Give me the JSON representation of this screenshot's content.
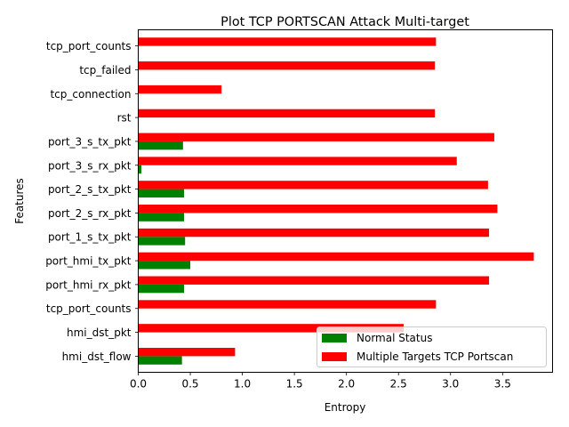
{
  "chart_data": {
    "type": "bar",
    "orientation": "horizontal",
    "title": "Plot TCP PORTSCAN Attack Multi-target",
    "xlabel": "Entropy",
    "ylabel": "Features",
    "xlim": [
      0,
      3.98
    ],
    "xticks": [
      0.0,
      0.5,
      1.0,
      1.5,
      2.0,
      2.5,
      3.0,
      3.5
    ],
    "xtick_labels": [
      "0.0",
      "0.5",
      "1.0",
      "1.5",
      "2.0",
      "2.5",
      "3.0",
      "3.5"
    ],
    "grid": false,
    "legend_position": "lower-right",
    "categories": [
      "hmi_dst_flow",
      "hmi_dst_pkt",
      "tcp_port_counts",
      "port_hmi_rx_pkt",
      "port_hmi_tx_pkt",
      "port_1_s_tx_pkt",
      "port_2_s_rx_pkt",
      "port_2_s_tx_pkt",
      "port_3_s_rx_pkt",
      "port_3_s_tx_pkt",
      "rst",
      "tcp_connection",
      "tcp_failed",
      "tcp_port_counts"
    ],
    "series": [
      {
        "name": "Normal Status",
        "color": "#008000",
        "values": [
          0.42,
          0,
          0,
          0.44,
          0.5,
          0.45,
          0.44,
          0.44,
          0.03,
          0.43,
          0,
          0,
          0,
          0
        ]
      },
      {
        "name": "Multiple Targets TCP Portscan",
        "color": "#ff0000",
        "values": [
          0.93,
          2.55,
          2.86,
          3.37,
          3.8,
          3.37,
          3.45,
          3.36,
          3.06,
          3.42,
          2.85,
          0.8,
          2.85,
          2.86
        ]
      }
    ]
  }
}
